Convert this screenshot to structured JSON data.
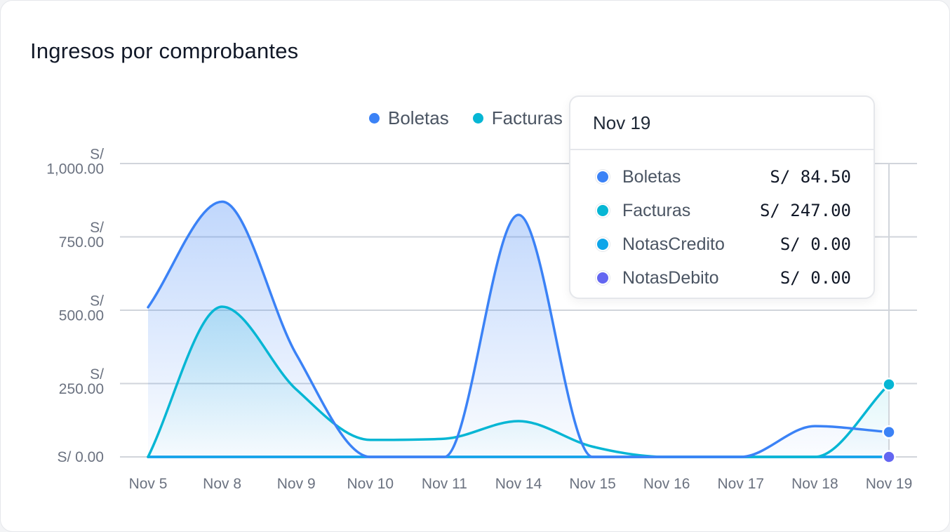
{
  "card": {
    "title": "Ingresos por comprobantes"
  },
  "chart_data": {
    "type": "area",
    "title": "Ingresos por comprobantes",
    "categories": [
      "Nov 5",
      "Nov 8",
      "Nov 9",
      "Nov 10",
      "Nov 11",
      "Nov 14",
      "Nov 15",
      "Nov 16",
      "Nov 17",
      "Nov 18",
      "Nov 19"
    ],
    "ylim": [
      0,
      1000
    ],
    "y_ticks": [
      {
        "value": 0,
        "label": "S/ 0.00"
      },
      {
        "value": 250,
        "label": "S/\n250.00"
      },
      {
        "value": 500,
        "label": "S/\n500.00"
      },
      {
        "value": 750,
        "label": "S/\n750.00"
      },
      {
        "value": 1000,
        "label": "S/\n1,000.00"
      }
    ],
    "grid": true,
    "legend_position": "top-right",
    "series": [
      {
        "name": "Boletas",
        "color": "#3b82f6",
        "values": [
          510,
          870,
          350,
          0,
          0,
          825,
          0,
          0,
          0,
          105,
          84.5
        ]
      },
      {
        "name": "Facturas",
        "color": "#06b6d4",
        "values": [
          0,
          512,
          230,
          58,
          62,
          122,
          35,
          0,
          0,
          0,
          247
        ]
      },
      {
        "name": "NotasCredito",
        "color": "#0ea5e9",
        "values": [
          0,
          0,
          0,
          0,
          0,
          0,
          0,
          0,
          0,
          0,
          0
        ]
      },
      {
        "name": "NotasDebito",
        "color": "#6366f1",
        "values": [
          0,
          0,
          0,
          0,
          0,
          0,
          0,
          0,
          0,
          0,
          0
        ]
      }
    ]
  },
  "tooltip": {
    "date": "Nov 19",
    "rows": [
      {
        "name": "Boletas",
        "value": "S/ 84.50",
        "color": "#3b82f6"
      },
      {
        "name": "Facturas",
        "value": "S/ 247.00",
        "color": "#06b6d4"
      },
      {
        "name": "NotasCredito",
        "value": "S/ 0.00",
        "color": "#0ea5e9"
      },
      {
        "name": "NotasDebito",
        "value": "S/ 0.00",
        "color": "#6366f1"
      }
    ]
  }
}
